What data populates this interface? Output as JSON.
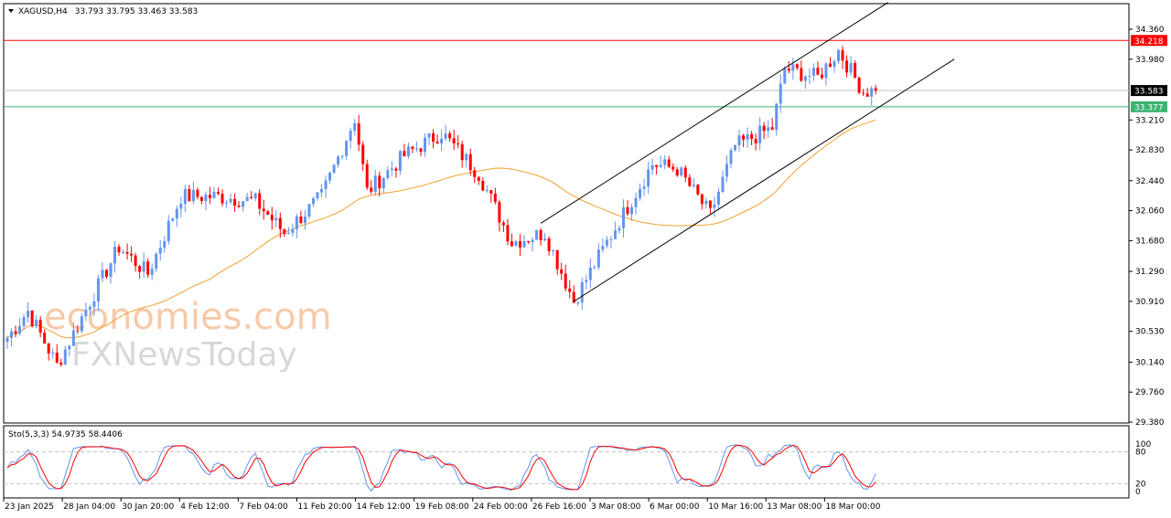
{
  "header": {
    "symbol": "XAGUSD,H4",
    "ohlc": "33.793 33.795 33.463 33.583"
  },
  "watermark": {
    "line1": "economies.com",
    "line2": "FXNewsToday"
  },
  "chart_data": {
    "type": "candlestick",
    "title": "XAGUSD,H4",
    "ylim": [
      29.38,
      34.36
    ],
    "y_ticks": [
      "34.360",
      "33.980",
      "33.210",
      "32.830",
      "32.440",
      "32.060",
      "31.680",
      "31.290",
      "30.910",
      "30.530",
      "30.140",
      "29.760",
      "29.380"
    ],
    "x_ticks": [
      "23 Jan 2025",
      "28 Jan 04:00",
      "30 Jan 20:00",
      "4 Feb 12:00",
      "7 Feb 04:00",
      "11 Feb 20:00",
      "14 Feb 12:00",
      "19 Feb 08:00",
      "24 Feb 00:00",
      "26 Feb 16:00",
      "3 Mar 08:00",
      "6 Mar 00:00",
      "10 Mar 16:00",
      "13 Mar 08:00",
      "18 Mar 00:00"
    ],
    "candle_count": 211,
    "close_keypoints": [
      [
        0,
        30.45
      ],
      [
        5,
        30.79
      ],
      [
        12,
        30.1
      ],
      [
        20,
        30.91
      ],
      [
        27,
        31.6
      ],
      [
        34,
        31.26
      ],
      [
        42,
        32.24
      ],
      [
        51,
        32.24
      ],
      [
        60,
        32.18
      ],
      [
        67,
        31.78
      ],
      [
        76,
        32.24
      ],
      [
        84,
        33.23
      ],
      [
        87,
        32.3
      ],
      [
        96,
        32.76
      ],
      [
        105,
        33.05
      ],
      [
        114,
        32.53
      ],
      [
        122,
        31.66
      ],
      [
        130,
        31.78
      ],
      [
        137,
        30.91
      ],
      [
        145,
        31.66
      ],
      [
        156,
        32.65
      ],
      [
        162,
        32.59
      ],
      [
        170,
        32.01
      ],
      [
        176,
        32.88
      ],
      [
        185,
        33.11
      ],
      [
        188,
        33.86
      ],
      [
        196,
        33.75
      ],
      [
        201,
        34.09
      ],
      [
        207,
        33.57
      ],
      [
        210,
        33.583
      ]
    ],
    "moving_average": {
      "period": 50,
      "color": "#f0a030"
    },
    "levels": [
      {
        "price": "34.218",
        "color": "#ff0000"
      },
      {
        "price": "33.583",
        "color": "#000000"
      },
      {
        "price": "33.377",
        "color": "#3cb371"
      }
    ],
    "trendlines": [
      {
        "from": [
          129,
          31.9
        ],
        "to": [
          213,
          34.7
        ]
      },
      {
        "from": [
          137,
          30.91
        ],
        "to": [
          229,
          33.98
        ]
      }
    ],
    "colors": {
      "bull": "#6495ed",
      "bear": "#ff0000"
    },
    "stochastic": {
      "label": "Sto(5,3,3) 54.9735 58.4406",
      "levels": [
        "100",
        "80",
        "20",
        "0"
      ]
    }
  }
}
